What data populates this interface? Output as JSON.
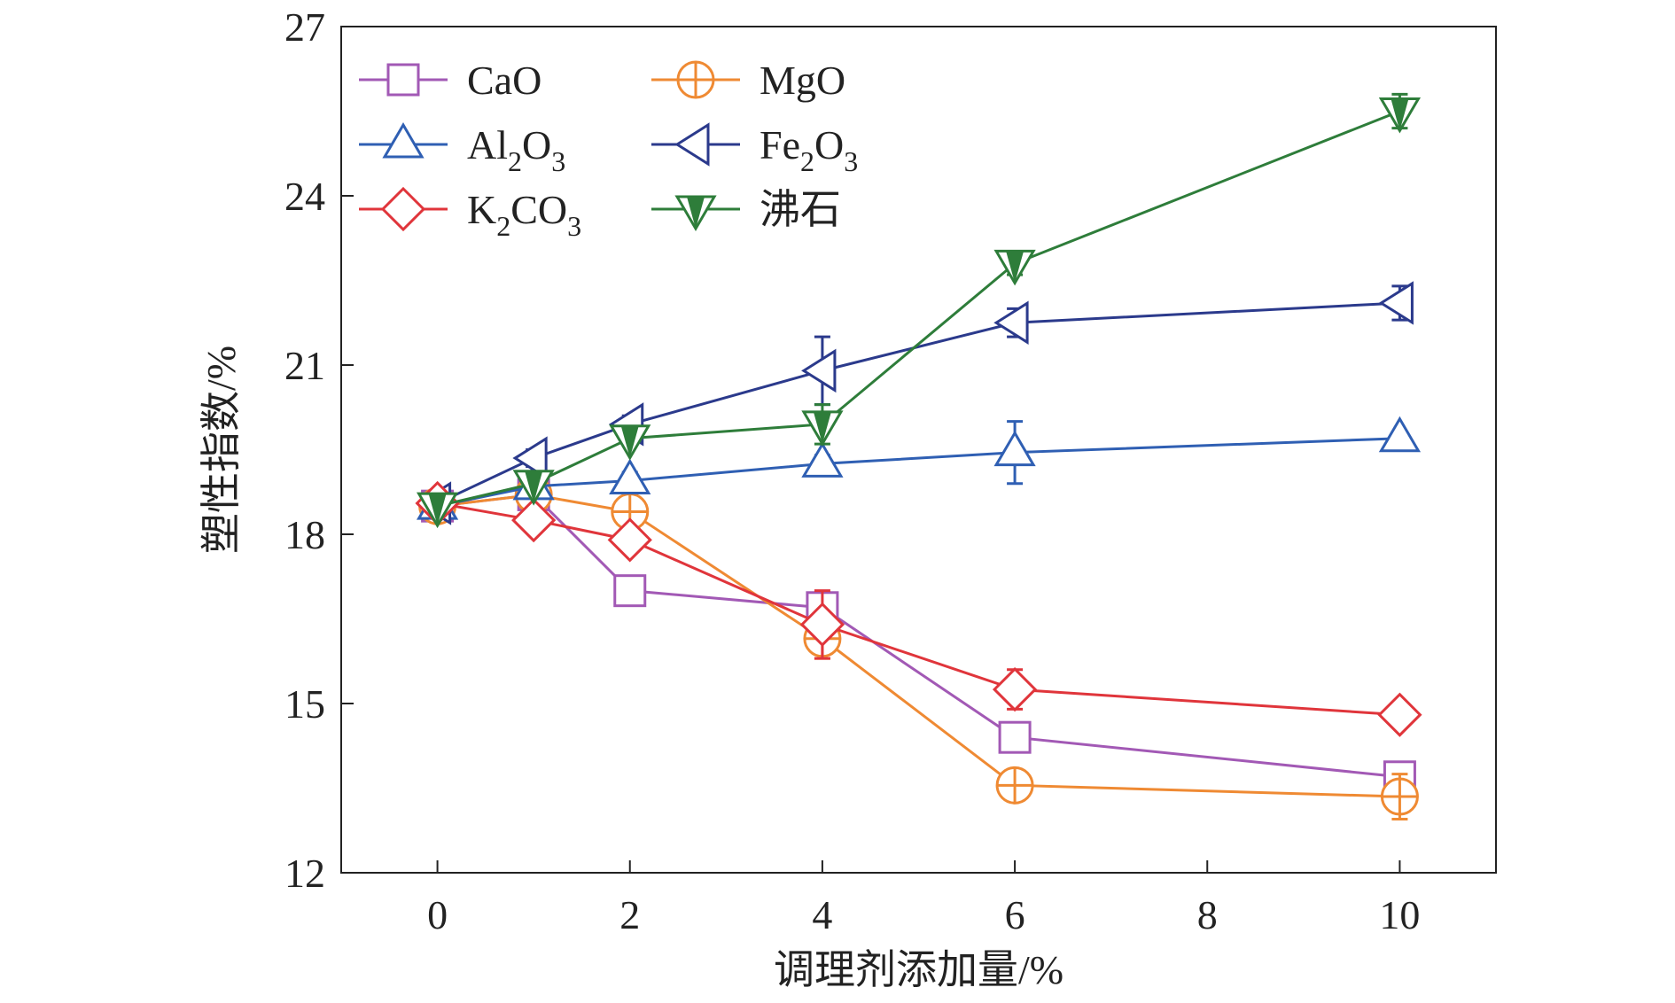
{
  "chart_data": {
    "type": "line",
    "xlabel": "调理剂添加量/%",
    "ylabel": "塑性指数/%",
    "xlim": [
      -1,
      11
    ],
    "ylim": [
      12,
      27
    ],
    "xticks": [
      0,
      2,
      4,
      6,
      8,
      10
    ],
    "yticks": [
      12,
      15,
      18,
      21,
      24,
      27
    ],
    "grid": false,
    "legend_position": "top-left",
    "x": [
      0,
      1,
      2,
      4,
      6,
      10
    ],
    "series": [
      {
        "name": "CaO",
        "label_main": "CaO",
        "label_sub": "",
        "label_tail": "",
        "label_sub2": "",
        "color": "#a259b5",
        "marker": "square",
        "values": [
          18.5,
          18.7,
          17.0,
          16.7,
          14.4,
          13.7
        ],
        "errors": [
          0.1,
          0.1,
          0.1,
          0.25,
          0.15,
          0.2
        ]
      },
      {
        "name": "MgO",
        "label_main": "MgO",
        "label_sub": "",
        "label_tail": "",
        "label_sub2": "",
        "color": "#ef8a33",
        "marker": "circle-plus",
        "values": [
          18.5,
          18.7,
          18.4,
          16.15,
          13.55,
          13.35
        ],
        "errors": [
          0.1,
          0.1,
          0.1,
          0.35,
          0.1,
          0.4
        ]
      },
      {
        "name": "Al2O3",
        "label_main": "Al",
        "label_sub": "2",
        "label_tail": "O",
        "label_sub2": "3",
        "color": "#2f5fb3",
        "marker": "triangle-up",
        "values": [
          18.5,
          18.85,
          18.95,
          19.25,
          19.45,
          19.7
        ],
        "errors": [
          0.1,
          0.1,
          0.15,
          0.15,
          0.55,
          0.1
        ]
      },
      {
        "name": "Fe2O3",
        "label_main": "Fe",
        "label_sub": "2",
        "label_tail": "O",
        "label_sub2": "3",
        "color": "#2b3a8c",
        "marker": "triangle-left",
        "values": [
          18.55,
          19.35,
          19.95,
          20.9,
          21.75,
          22.1
        ],
        "errors": [
          0.1,
          0.15,
          0.15,
          0.6,
          0.25,
          0.3
        ]
      },
      {
        "name": "K2CO3",
        "label_main": "K",
        "label_sub": "2",
        "label_tail": "CO",
        "label_sub2": "3",
        "color": "#e0353b",
        "marker": "diamond",
        "values": [
          18.55,
          18.25,
          17.9,
          16.4,
          15.25,
          14.8
        ],
        "errors": [
          0.1,
          0.1,
          0.15,
          0.6,
          0.35,
          0.15
        ]
      },
      {
        "name": "沸石",
        "label_main": "沸石",
        "label_sub": "",
        "label_tail": "",
        "label_sub2": "",
        "color": "#2e7d3a",
        "marker": "triangle-down",
        "values": [
          18.5,
          18.9,
          19.7,
          19.95,
          22.8,
          25.5
        ],
        "errors": [
          0.1,
          0.1,
          0.1,
          0.35,
          0.2,
          0.3
        ]
      }
    ]
  }
}
